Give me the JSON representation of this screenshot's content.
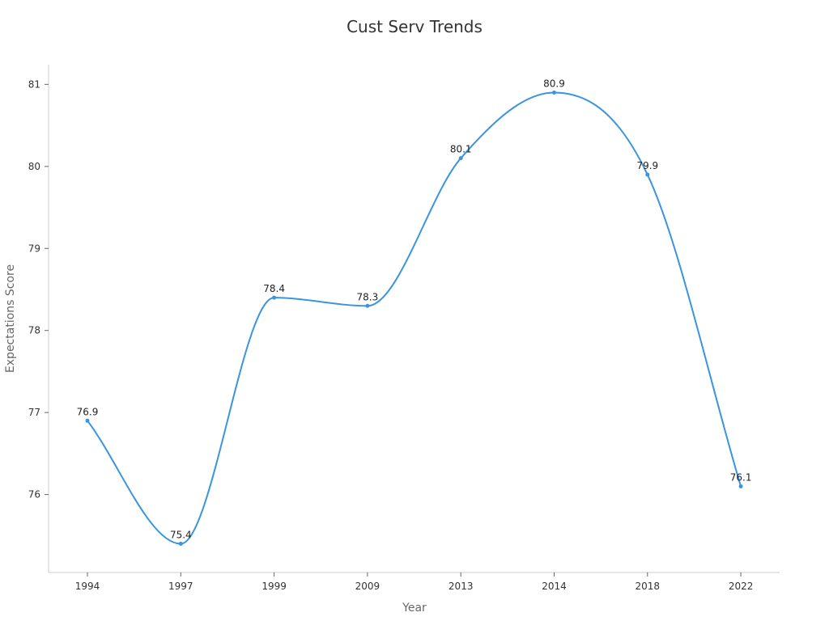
{
  "chart_data": {
    "type": "line",
    "title": "Cust Serv Trends",
    "xlabel": "Year",
    "ylabel": "Expectations Score",
    "categories": [
      "1994",
      "1997",
      "1999",
      "2009",
      "2013",
      "2014",
      "2018",
      "2022"
    ],
    "series": [
      {
        "values": [
          76.9,
          75.4,
          78.4,
          78.3,
          80.1,
          80.9,
          79.9,
          76.1
        ],
        "color": "#3a94e0"
      }
    ],
    "data_labels": [
      "76.9",
      "75.4",
      "78.4",
      "78.3",
      "80.1",
      "80.9",
      "79.9",
      "76.1"
    ],
    "yticks": [
      76,
      77,
      78,
      79,
      80,
      81
    ],
    "ylim": [
      75.05,
      81.24
    ],
    "grid": false,
    "smooth": true
  },
  "colors": {
    "line": "#3a94e0",
    "axis": "#cccccc"
  }
}
